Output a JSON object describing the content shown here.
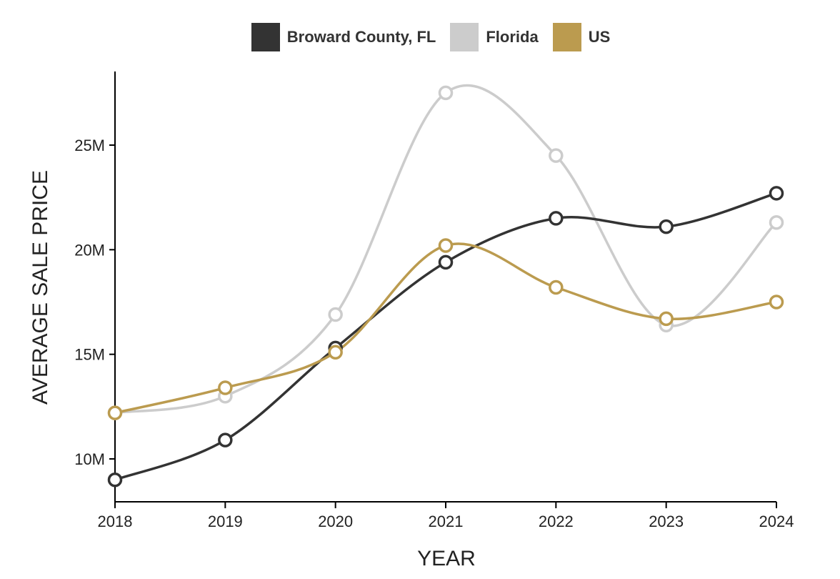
{
  "chart_data": {
    "type": "line",
    "title": "",
    "xlabel": "YEAR",
    "ylabel": "AVERAGE SALE PRICE",
    "x": [
      "2018",
      "2019",
      "2020",
      "2021",
      "2022",
      "2023",
      "2024"
    ],
    "ylim": [
      8,
      28.5
    ],
    "yticks": [
      10,
      15,
      20,
      25
    ],
    "ytick_labels": [
      "10M",
      "15M",
      "20M",
      "25M"
    ],
    "legend_position": "top-center",
    "grid": false,
    "series": [
      {
        "name": "Broward County, FL",
        "color": "#333333",
        "values": [
          9.0,
          10.9,
          15.3,
          19.4,
          21.5,
          21.1,
          22.7
        ]
      },
      {
        "name": "Florida",
        "color": "#cccccc",
        "values": [
          12.2,
          13.0,
          16.9,
          27.5,
          24.5,
          16.4,
          21.3
        ]
      },
      {
        "name": "US",
        "color": "#bb9b4f",
        "values": [
          12.2,
          13.4,
          15.1,
          20.2,
          18.2,
          16.7,
          17.5
        ]
      }
    ]
  }
}
